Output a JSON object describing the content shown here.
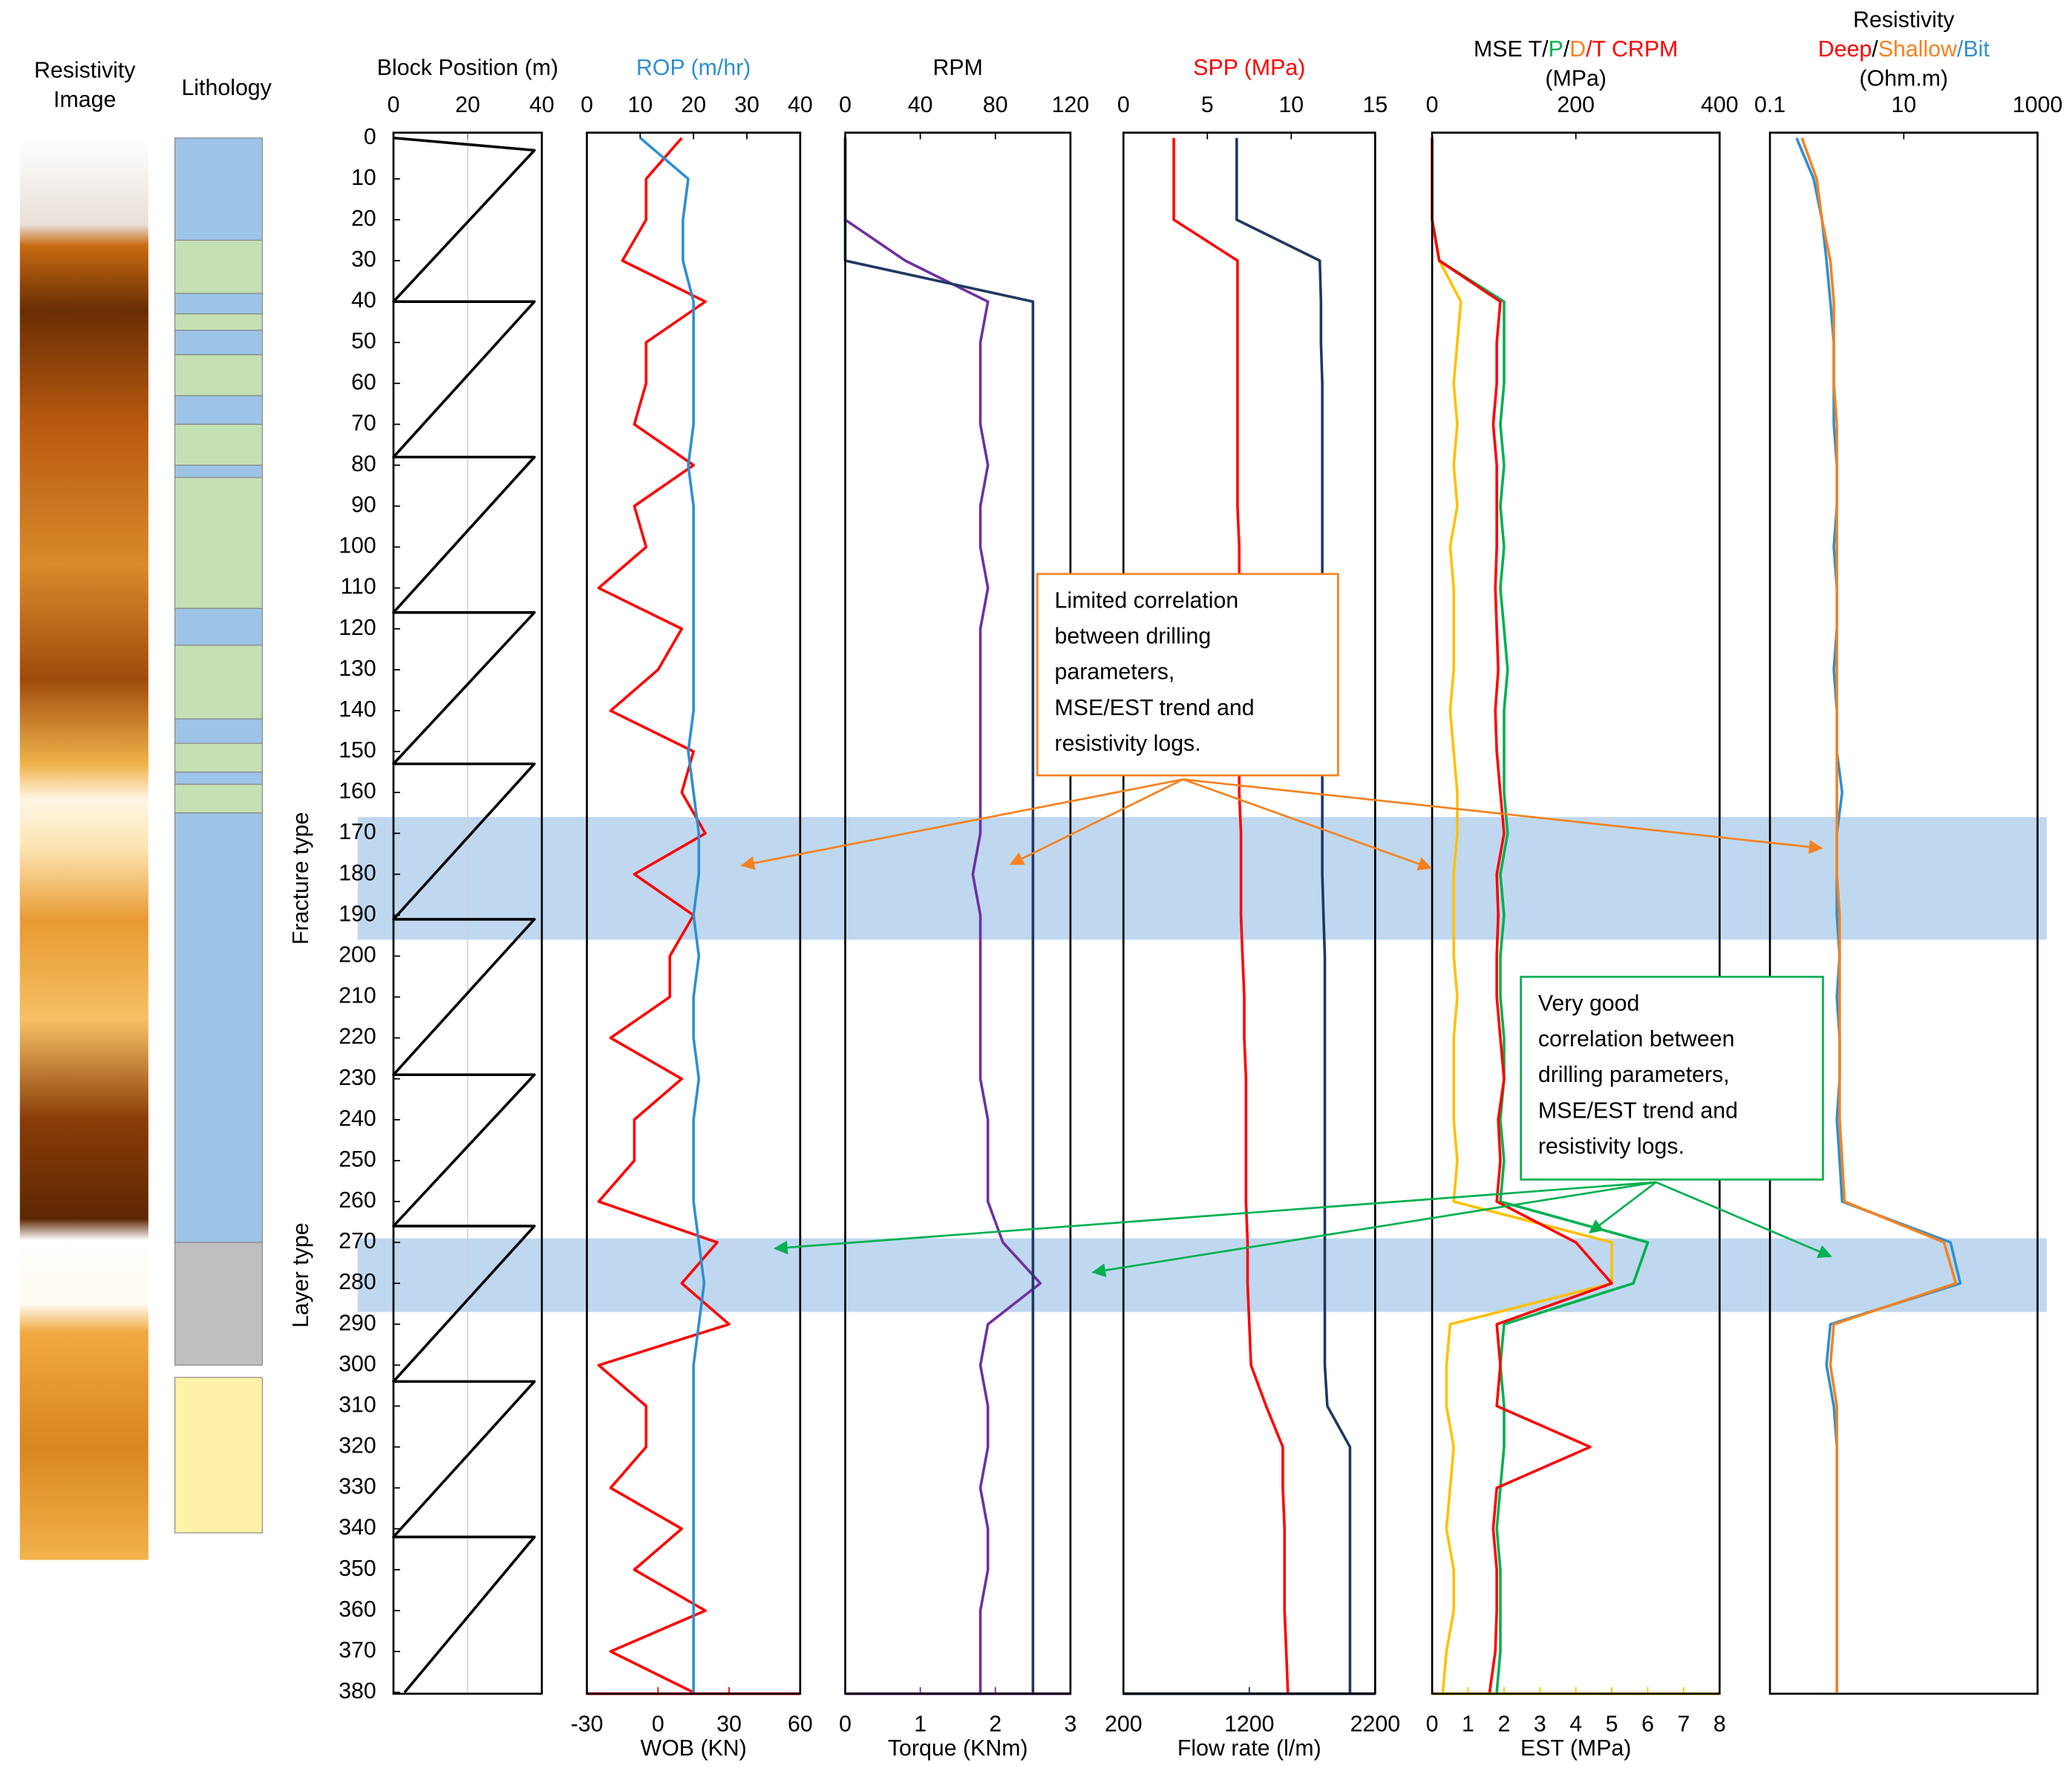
{
  "chart_data": {
    "type": "well-log",
    "ylim": [
      0,
      380
    ],
    "yticks": [
      0,
      10,
      20,
      30,
      40,
      50,
      60,
      70,
      80,
      90,
      100,
      110,
      120,
      130,
      140,
      150,
      160,
      170,
      180,
      190,
      200,
      210,
      220,
      230,
      240,
      250,
      260,
      270,
      280,
      290,
      300,
      310,
      320,
      330,
      340,
      350,
      360,
      370,
      380
    ],
    "depth": [
      0,
      10,
      20,
      30,
      40,
      50,
      60,
      70,
      80,
      90,
      100,
      110,
      120,
      130,
      140,
      150,
      160,
      170,
      180,
      190,
      200,
      210,
      220,
      230,
      240,
      250,
      260,
      270,
      280,
      290,
      300,
      310,
      320,
      330,
      340,
      350,
      360,
      370,
      380
    ],
    "resistivity_image": {
      "title": [
        "Resistivity",
        "Image"
      ]
    },
    "lithology": {
      "title": "Lithology",
      "intervals": [
        {
          "top": 0,
          "base": 25,
          "color": "#9dc3e6"
        },
        {
          "top": 25,
          "base": 38,
          "color": "#c5e0b4"
        },
        {
          "top": 38,
          "base": 43,
          "color": "#9dc3e6"
        },
        {
          "top": 43,
          "base": 47,
          "color": "#c5e0b4"
        },
        {
          "top": 47,
          "base": 53,
          "color": "#9dc3e6"
        },
        {
          "top": 53,
          "base": 63,
          "color": "#c5e0b4"
        },
        {
          "top": 63,
          "base": 70,
          "color": "#9dc3e6"
        },
        {
          "top": 70,
          "base": 80,
          "color": "#c5e0b4"
        },
        {
          "top": 80,
          "base": 83,
          "color": "#9dc3e6"
        },
        {
          "top": 83,
          "base": 115,
          "color": "#c5e0b4"
        },
        {
          "top": 115,
          "base": 124,
          "color": "#9dc3e6"
        },
        {
          "top": 124,
          "base": 142,
          "color": "#c5e0b4"
        },
        {
          "top": 142,
          "base": 148,
          "color": "#9dc3e6"
        },
        {
          "top": 148,
          "base": 155,
          "color": "#c5e0b4"
        },
        {
          "top": 155,
          "base": 158,
          "color": "#9dc3e6"
        },
        {
          "top": 158,
          "base": 165,
          "color": "#c5e0b4"
        },
        {
          "top": 165,
          "base": 270,
          "color": "#9dc3e6"
        },
        {
          "top": 270,
          "base": 300,
          "color": "#bfbfbf"
        },
        {
          "top": 303,
          "base": 341,
          "color": "#fff2a8"
        }
      ]
    },
    "zones": [
      {
        "top": 166,
        "base": 196,
        "label": "Fracture type"
      },
      {
        "top": 269,
        "base": 287,
        "label": "Layer type"
      }
    ],
    "tracks": [
      {
        "title": [
          [
            {
              "text": "Block Position (m)",
              "color": "#000000"
            }
          ]
        ],
        "tick_color": "#000000",
        "xlim": [
          0,
          40
        ],
        "xticks": [
          0,
          20,
          40
        ],
        "grid": true,
        "series": [
          {
            "color": "#000000",
            "axis": "top",
            "depth": [
              0,
              3,
              40,
              40,
              78,
              78,
              116,
              116,
              153,
              153,
              191,
              191,
              229,
              229,
              266,
              266,
              304,
              304,
              342,
              342,
              380
            ],
            "values": [
              0,
              38,
              0,
              38,
              0,
              38,
              0,
              38,
              0,
              38,
              0,
              38,
              0,
              38,
              0,
              38,
              0,
              38,
              0,
              38,
              3
            ]
          }
        ]
      },
      {
        "title": [
          [
            {
              "text": "ROP (m/hr)",
              "color": "#2e8fd1"
            }
          ]
        ],
        "tick_color": "#2e8fd1",
        "xlim": [
          0,
          40
        ],
        "xticks": [
          0,
          10,
          20,
          30,
          40
        ],
        "bottom": {
          "title": "WOB (KN)",
          "color": "#ff0000",
          "xlim": [
            -30,
            60
          ],
          "xticks": [
            -30,
            0,
            30,
            60
          ]
        },
        "series": [
          {
            "color": "#ff0000",
            "axis": "bottom",
            "values": [
              10,
              -5,
              -5,
              -15,
              20,
              -5,
              -5,
              -10,
              15,
              -10,
              -5,
              -25,
              10,
              0,
              -20,
              15,
              10,
              20,
              -10,
              15,
              5,
              5,
              -20,
              10,
              -10,
              -10,
              -25,
              25,
              10,
              30,
              -25,
              -5,
              -5,
              -20,
              10,
              -10,
              20,
              -20,
              15
            ]
          },
          {
            "color": "#2e8fd1",
            "axis": "top",
            "values": [
              10,
              19,
              18,
              18,
              20,
              20,
              20,
              20,
              19,
              20,
              20,
              20,
              20,
              20,
              20,
              19,
              20,
              21,
              21,
              20,
              21,
              20,
              20,
              21,
              20,
              20,
              20,
              21,
              22,
              21,
              20,
              20,
              20,
              20,
              20,
              20,
              20,
              20,
              20
            ]
          }
        ]
      },
      {
        "title": [
          [
            {
              "text": "RPM",
              "color": "#000000"
            }
          ]
        ],
        "tick_color": "#000000",
        "xlim": [
          0,
          120
        ],
        "xticks": [
          0,
          40,
          80,
          120
        ],
        "bottom": {
          "title": "Torque (KNm)",
          "color": "#7030a0",
          "xlim": [
            0,
            3
          ],
          "xticks": [
            0,
            1,
            2,
            3
          ]
        },
        "series": [
          {
            "color": "#7030a0",
            "axis": "bottom",
            "values": [
              0,
              0,
              0,
              0.8,
              1.9,
              1.8,
              1.8,
              1.8,
              1.9,
              1.8,
              1.8,
              1.9,
              1.8,
              1.8,
              1.8,
              1.8,
              1.8,
              1.8,
              1.7,
              1.8,
              1.8,
              1.8,
              1.8,
              1.8,
              1.9,
              1.9,
              1.9,
              2.1,
              2.6,
              1.9,
              1.8,
              1.9,
              1.9,
              1.8,
              1.9,
              1.9,
              1.8,
              1.8,
              1.8
            ]
          },
          {
            "color": "#1f3864",
            "axis": "top",
            "values": [
              0,
              0,
              0,
              0,
              100,
              100,
              100,
              100,
              100,
              100,
              100,
              100,
              100,
              100,
              100,
              100,
              100,
              100,
              100,
              100,
              100,
              100,
              100,
              100,
              100,
              100,
              100,
              100,
              100,
              100,
              100,
              100,
              100,
              100,
              100,
              100,
              100,
              100,
              100
            ]
          }
        ]
      },
      {
        "title": [
          [
            {
              "text": "SPP (MPa)",
              "color": "#ff0000"
            }
          ]
        ],
        "tick_color": "#ff0000",
        "xlim": [
          0,
          15
        ],
        "xticks": [
          0,
          5,
          10,
          15
        ],
        "bottom": {
          "title": "Flow rate (l/m)",
          "color": "#1f3864",
          "xlim": [
            200,
            2200
          ],
          "xticks": [
            200,
            1200,
            2200
          ]
        },
        "series": [
          {
            "color": "#1f3864",
            "axis": "bottom",
            "values": [
              1100,
              1100,
              1100,
              1760,
              1770,
              1770,
              1780,
              1780,
              1780,
              1780,
              1780,
              1780,
              1780,
              1780,
              1780,
              1780,
              1780,
              1780,
              1780,
              1790,
              1800,
              1800,
              1800,
              1800,
              1800,
              1800,
              1800,
              1800,
              1800,
              1800,
              1800,
              1820,
              2000,
              2000,
              2000,
              2000,
              2000,
              2000,
              2000
            ]
          },
          {
            "color": "#ff0000",
            "axis": "top",
            "values": [
              3,
              3,
              3,
              6.8,
              6.8,
              6.8,
              6.8,
              6.8,
              6.8,
              6.8,
              6.9,
              6.9,
              6.9,
              6.9,
              6.9,
              6.9,
              6.9,
              7,
              7,
              7,
              7.1,
              7.2,
              7.2,
              7.3,
              7.3,
              7.3,
              7.3,
              7.4,
              7.4,
              7.5,
              7.6,
              8.5,
              9.5,
              9.5,
              9.6,
              9.6,
              9.6,
              9.7,
              9.8
            ]
          }
        ]
      },
      {
        "title": [
          [
            {
              "text": "MSE T/",
              "color": "#000000"
            },
            {
              "text": "P",
              "color": "#00b050"
            },
            {
              "text": "/",
              "color": "#000000"
            },
            {
              "text": "D",
              "color": "#f58220"
            },
            {
              "text": "/T CRPM",
              "color": "#ff0000"
            }
          ],
          [
            {
              "text": "(MPa)",
              "color": "#000000"
            }
          ]
        ],
        "tick_color": "#000000",
        "xlim": [
          0,
          400
        ],
        "xticks": [
          0,
          200,
          400
        ],
        "bottom": {
          "title": "EST (MPa)",
          "color": "#ffc000",
          "xlim": [
            0,
            8
          ],
          "xticks": [
            0,
            1,
            2,
            3,
            4,
            5,
            6,
            7,
            8
          ]
        },
        "series": [
          {
            "color": "#ffc000",
            "axis": "bottom",
            "values": [
              0,
              0,
              0,
              0.2,
              0.8,
              0.7,
              0.6,
              0.7,
              0.6,
              0.7,
              0.5,
              0.6,
              0.6,
              0.6,
              0.5,
              0.6,
              0.7,
              0.7,
              0.6,
              0.6,
              0.6,
              0.7,
              0.6,
              0.6,
              0.6,
              0.7,
              0.6,
              5,
              5,
              0.5,
              0.4,
              0.4,
              0.6,
              0.5,
              0.4,
              0.6,
              0.6,
              0.4,
              0.3
            ]
          },
          {
            "color": "#00b050",
            "axis": "top",
            "values": [
              0,
              0,
              0,
              10,
              100,
              100,
              100,
              95,
              100,
              95,
              100,
              95,
              100,
              105,
              100,
              100,
              100,
              105,
              95,
              100,
              95,
              95,
              100,
              100,
              95,
              100,
              95,
              300,
              280,
              100,
              95,
              100,
              100,
              95,
              90,
              95,
              95,
              95,
              90
            ]
          },
          {
            "color": "#ff0000",
            "axis": "top",
            "values": [
              0,
              0,
              0,
              10,
              95,
              90,
              90,
              85,
              90,
              90,
              90,
              88,
              90,
              92,
              88,
              90,
              95,
              100,
              90,
              92,
              90,
              90,
              95,
              100,
              92,
              95,
              90,
              200,
              250,
              90,
              95,
              90,
              220,
              90,
              85,
              90,
              90,
              88,
              80
            ]
          }
        ]
      },
      {
        "title": [
          [
            {
              "text": "Resistivity",
              "color": "#000000"
            }
          ],
          [
            {
              "text": "Deep",
              "color": "#ff0000"
            },
            {
              "text": "/",
              "color": "#000000"
            },
            {
              "text": "Shallow",
              "color": "#f58220"
            },
            {
              "text": "/Bit",
              "color": "#2e8fd1"
            }
          ],
          [
            {
              "text": "(Ohm.m)",
              "color": "#000000"
            }
          ]
        ],
        "tick_color": "#000000",
        "log": true,
        "xlim": [
          0.1,
          1000
        ],
        "xticks": [
          0.1,
          10,
          1000
        ],
        "series": [
          {
            "color": "#2e8fd1",
            "axis": "top",
            "values": [
              0.25,
              0.45,
              0.6,
              0.7,
              0.8,
              0.9,
              0.9,
              0.9,
              1,
              1,
              0.9,
              1,
              1,
              0.9,
              1,
              1,
              1.2,
              1,
              1,
              1,
              1.1,
              1,
              1.1,
              1.1,
              1,
              1.1,
              1.2,
              50,
              70,
              0.8,
              0.7,
              0.9,
              1,
              1,
              1,
              1,
              1,
              1,
              1
            ]
          },
          {
            "color": "#f58220",
            "axis": "top",
            "values": [
              0.3,
              0.5,
              0.6,
              0.8,
              0.9,
              0.9,
              0.9,
              1,
              1,
              1,
              1,
              1,
              1,
              1,
              1,
              1,
              1,
              1,
              1,
              1.1,
              1.1,
              1.1,
              1.1,
              1.1,
              1.1,
              1.2,
              1.3,
              40,
              60,
              0.9,
              0.8,
              1,
              1,
              1,
              1,
              1,
              1,
              1,
              1
            ]
          }
        ]
      }
    ],
    "annotations": [
      {
        "color": "#f58220",
        "lines": [
          "Limited correlation",
          "between drilling",
          "parameters,",
          "MSE/EST trend and",
          "resistivity logs."
        ]
      },
      {
        "color": "#00b050",
        "lines": [
          "Very good",
          "correlation between",
          "drilling parameters,",
          "MSE/EST trend and",
          "resistivity logs."
        ]
      }
    ]
  }
}
